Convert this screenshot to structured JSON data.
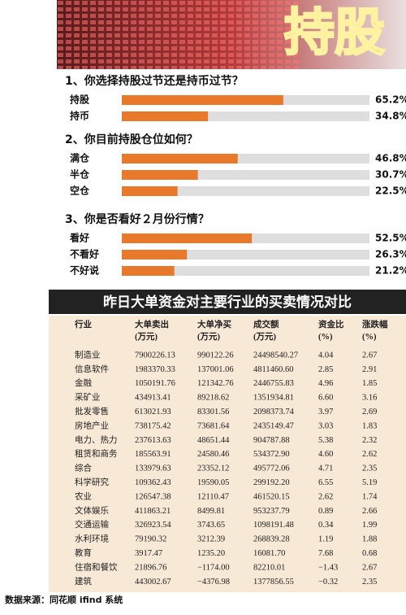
{
  "header": {
    "title": "持股"
  },
  "chart_data": [
    {
      "type": "bar",
      "title": "1、你选择持股过节还是持币过节？",
      "categories": [
        "持股",
        "持币"
      ],
      "values": [
        65.2,
        34.8
      ],
      "value_labels": [
        "65.2%",
        "34.8%"
      ],
      "color": "#e8782a",
      "xlim": [
        0,
        100
      ]
    },
    {
      "type": "bar",
      "title": "2、你目前持股仓位如何？",
      "categories": [
        "满仓",
        "半仓",
        "空仓"
      ],
      "values": [
        46.8,
        30.7,
        22.5
      ],
      "value_labels": [
        "46.8%",
        "30.7%",
        "22.5%"
      ],
      "color": "#e8782a",
      "xlim": [
        0,
        100
      ]
    },
    {
      "type": "bar",
      "title": "3、你是否看好２月份行情？",
      "categories": [
        "看好",
        "不看好",
        "不好说"
      ],
      "values": [
        52.5,
        26.3,
        21.2
      ],
      "value_labels": [
        "52.5%",
        "26.3%",
        "21.2%"
      ],
      "color": "#e8782a",
      "xlim": [
        0,
        100
      ]
    }
  ],
  "table": {
    "title": "昨日大单资金对主要行业的买卖情况对比",
    "columns": [
      "行业",
      "大单卖出\n(万元)",
      "大单净买\n(万元)",
      "成交额\n(万元)",
      "资金比\n(%)",
      "涨跌幅\n(%)"
    ],
    "rows": [
      [
        "制造业",
        "7900226.13",
        "990122.26",
        "24498540.27",
        "4.04",
        "2.67"
      ],
      [
        "信息软件",
        "1983370.33",
        "137001.06",
        "4811460.60",
        "2.85",
        "2.91"
      ],
      [
        "金融",
        "1050191.76",
        "121342.76",
        "2446755.83",
        "4.96",
        "1.85"
      ],
      [
        "采矿业",
        "434913.41",
        "89218.62",
        "1351934.81",
        "6.60",
        "3.16"
      ],
      [
        "批发零售",
        "613021.93",
        "83301.56",
        "2098373.74",
        "3.97",
        "2.69"
      ],
      [
        "房地产业",
        "738175.42",
        "73681.64",
        "2435149.47",
        "3.03",
        "1.83"
      ],
      [
        "电力、热力",
        "237613.63",
        "48651.44",
        "904787.88",
        "5.38",
        "2.32"
      ],
      [
        "租赁和商务",
        "185563.91",
        "24580.46",
        "534372.90",
        "4.60",
        "2.62"
      ],
      [
        "综合",
        "133979.63",
        "23352.12",
        "495772.06",
        "4.71",
        "2.35"
      ],
      [
        "科学研究",
        "109362.43",
        "19590.05",
        "299192.20",
        "6.55",
        "5.19"
      ],
      [
        "农业",
        "126547.38",
        "12110.47",
        "461520.15",
        "2.62",
        "1.74"
      ],
      [
        "文体娱乐",
        "411863.21",
        "8499.81",
        "953237.79",
        "0.89",
        "2.66"
      ],
      [
        "交通运输",
        "326923.54",
        "3743.65",
        "1098191.48",
        "0.34",
        "1.99"
      ],
      [
        "水利环境",
        "79190.32",
        "3212.39",
        "268839.28",
        "1.19",
        "1.88"
      ],
      [
        "教育",
        "3917.47",
        "1235.20",
        "16081.70",
        "7.68",
        "0.68"
      ],
      [
        "住宿和餐饮",
        "21896.76",
        "−1174.00",
        "82210.01",
        "−1.43",
        "2.67"
      ],
      [
        "建筑",
        "443002.67",
        "−4376.98",
        "1377856.55",
        "−0.32",
        "2.35"
      ]
    ]
  },
  "source": "数据来源：同花顺 ifind 系统"
}
